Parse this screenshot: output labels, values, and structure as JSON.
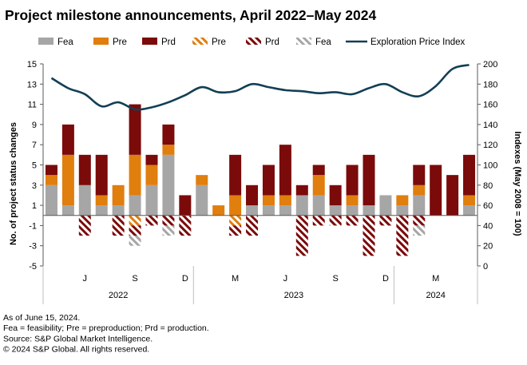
{
  "chart_data": {
    "type": "bar",
    "title": "Project milestone announcements, April 2022–May 2024",
    "ylabel": "No. of project status changes",
    "y2label": "Indexes (May 2008 = 100)",
    "ylim": [
      -5,
      15
    ],
    "y2lim": [
      0,
      200
    ],
    "yticks": [
      15,
      13,
      11,
      9,
      7,
      5,
      3,
      1,
      -1,
      -3,
      -5
    ],
    "y2ticks": [
      200,
      180,
      160,
      140,
      120,
      100,
      80,
      60,
      40,
      20,
      0
    ],
    "ytick_labels": [
      "15",
      "13",
      "11",
      "9",
      "7",
      "5",
      "3",
      "1",
      "-1",
      "-3",
      "-5"
    ],
    "y2tick_labels": [
      "200",
      "180",
      "160",
      "140",
      "120",
      "100",
      "80",
      "60",
      "40",
      "20",
      "0"
    ],
    "months": [
      "Apr 2022",
      "May 2022",
      "Jun 2022",
      "Jul 2022",
      "Aug 2022",
      "Sep 2022",
      "Oct 2022",
      "Nov 2022",
      "Dec 2022",
      "Jan 2023",
      "Feb 2023",
      "Mar 2023",
      "Apr 2023",
      "May 2023",
      "Jun 2023",
      "Jul 2023",
      "Aug 2023",
      "Sep 2023",
      "Oct 2023",
      "Nov 2023",
      "Dec 2023",
      "Jan 2024",
      "Feb 2024",
      "Mar 2024",
      "Apr 2024",
      "May 2024"
    ],
    "month_ticks": [
      {
        "label": "J",
        "index": 2
      },
      {
        "label": "S",
        "index": 5
      },
      {
        "label": "D",
        "index": 8
      },
      {
        "label": "M",
        "index": 11
      },
      {
        "label": "J",
        "index": 14
      },
      {
        "label": "S",
        "index": 17
      },
      {
        "label": "D",
        "index": 20
      },
      {
        "label": "M",
        "index": 23
      }
    ],
    "year_groups": [
      {
        "label": "2022",
        "start": 0,
        "end": 8
      },
      {
        "label": "2023",
        "start": 9,
        "end": 20
      },
      {
        "label": "2024",
        "start": 21,
        "end": 25
      }
    ],
    "series": [
      {
        "name": "Fea",
        "kind": "bar",
        "color": "#a6a6a6",
        "pattern": "solid",
        "values": [
          3,
          1,
          3,
          1,
          1,
          2,
          3,
          6,
          0,
          3,
          0,
          0,
          1,
          1,
          1,
          2,
          2,
          1,
          1,
          1,
          2,
          1,
          2,
          0,
          0,
          1
        ]
      },
      {
        "name": "Pre",
        "kind": "bar",
        "color": "#e07e0e",
        "pattern": "solid",
        "values": [
          1,
          5,
          0,
          1,
          2,
          4,
          2,
          1,
          0,
          1,
          1,
          2,
          0,
          1,
          1,
          0,
          2,
          0,
          1,
          0,
          0,
          1,
          1,
          0,
          0,
          1
        ]
      },
      {
        "name": "Prd",
        "kind": "bar",
        "color": "#7b0a0a",
        "pattern": "solid",
        "values": [
          1,
          3,
          3,
          4,
          0,
          5,
          1,
          2,
          2,
          0,
          0,
          4,
          2,
          3,
          5,
          1,
          1,
          2,
          3,
          5,
          0,
          0,
          2,
          5,
          4,
          4
        ]
      },
      {
        "name": "Pre",
        "kind": "bar",
        "color": "#e07e0e",
        "pattern": "hatched",
        "values": [
          0,
          0,
          0,
          0,
          0,
          -1,
          0,
          0,
          0,
          0,
          0,
          -1,
          0,
          0,
          0,
          0,
          0,
          0,
          0,
          0,
          0,
          0,
          0,
          0,
          0,
          0
        ]
      },
      {
        "name": "Prd",
        "kind": "bar",
        "color": "#7b0a0a",
        "pattern": "hatched",
        "values": [
          0,
          0,
          -2,
          0,
          -2,
          -1,
          -1,
          -1,
          -2,
          0,
          0,
          -1,
          -2,
          0,
          0,
          -4,
          -1,
          -1,
          -1,
          -4,
          -1,
          -4,
          -1,
          0,
          0,
          0
        ]
      },
      {
        "name": "Fea",
        "kind": "bar",
        "color": "#a6a6a6",
        "pattern": "hatched",
        "values": [
          0,
          0,
          0,
          0,
          0,
          -1,
          0,
          -1,
          0,
          0,
          0,
          0,
          0,
          0,
          0,
          0,
          0,
          0,
          0,
          0,
          0,
          0,
          -1,
          0,
          0,
          0
        ]
      },
      {
        "name": "Exploration Price Index",
        "kind": "line",
        "axis": "right",
        "color": "#123f55",
        "values": [
          186,
          176,
          170,
          158,
          162,
          155,
          157,
          162,
          169,
          177,
          172,
          173,
          180,
          177,
          174,
          173,
          171,
          172,
          170,
          176,
          180,
          172,
          168,
          178,
          195,
          199
        ]
      }
    ],
    "footnotes": [
      "As of June 15, 2024.",
      "Fea = feasibility; Pre = preproduction; Prd = production.",
      "Source: S&P Global Market Intelligence.",
      "© 2024 S&P Global. All rights reserved."
    ]
  }
}
